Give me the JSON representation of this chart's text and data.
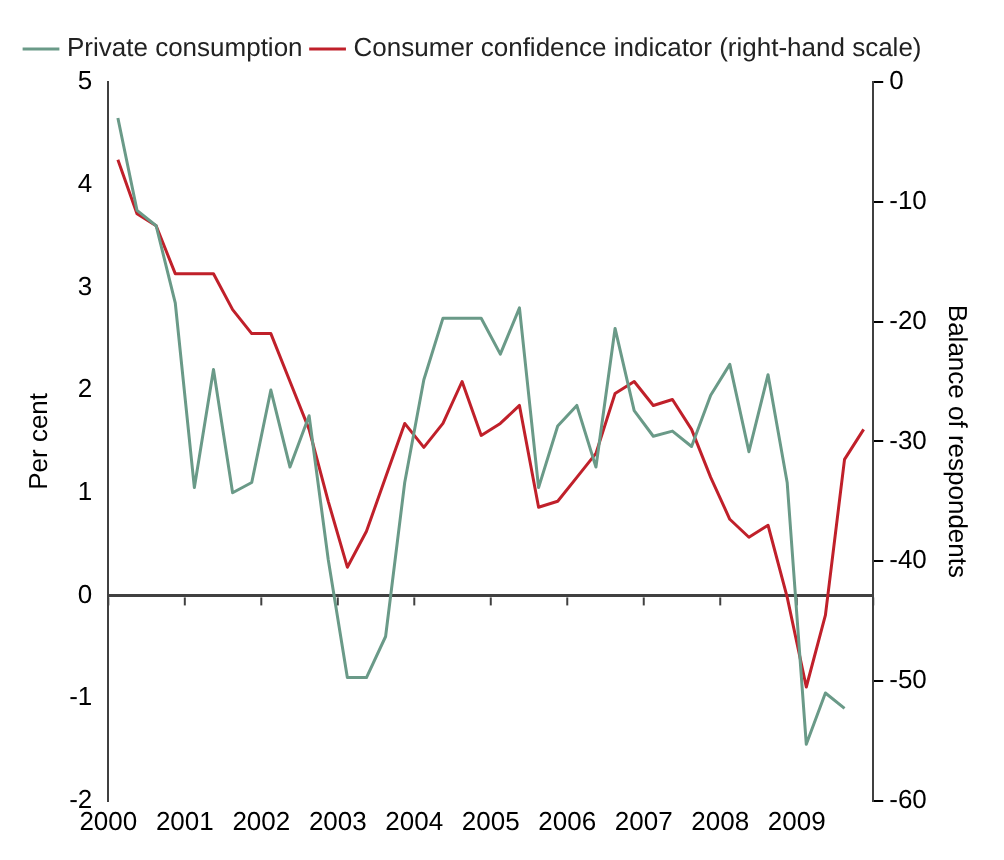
{
  "chart_data": {
    "type": "line",
    "ylabel": "Per cent",
    "y2label": "Balance of respondents",
    "xlim": [
      2000,
      2010
    ],
    "xticks": [
      2000,
      2001,
      2002,
      2003,
      2004,
      2005,
      2006,
      2007,
      2008,
      2009,
      {
        "value": 2010,
        "label": null
      }
    ],
    "ylim": [
      -2,
      5
    ],
    "yticks": [
      -2,
      -1,
      0,
      1,
      2,
      3,
      4,
      5
    ],
    "y2lim": [
      -60,
      0
    ],
    "y2ticks": [
      -60,
      -50,
      -40,
      -30,
      -20,
      -10,
      0
    ],
    "grid": false,
    "legend": "top left",
    "marker": "none",
    "line_style": "solid",
    "ref_lines": [
      {
        "axis": "y",
        "value": 0,
        "color": "#404040"
      }
    ],
    "series": [
      {
        "name": "Private consumption",
        "color": "#6a9a88",
        "x": [
          2000.125,
          2000.375,
          2000.625,
          2000.875,
          2001.125,
          2001.375,
          2001.625,
          2001.875,
          2002.125,
          2002.375,
          2002.625,
          2002.875,
          2003.125,
          2003.375,
          2003.625,
          2003.875,
          2004.125,
          2004.375,
          2004.625,
          2004.875,
          2005.125,
          2005.375,
          2005.625,
          2005.875,
          2006.125,
          2006.375,
          2006.625,
          2006.875,
          2007.125,
          2007.375,
          2007.625,
          2007.875,
          2008.125,
          2008.375,
          2008.625,
          2008.875,
          2009.125,
          2009.375,
          2009.625
        ],
        "values": [
          4.65,
          3.75,
          3.6,
          2.85,
          1.05,
          2.2,
          1.0,
          1.1,
          2.0,
          1.25,
          1.75,
          0.35,
          -0.8,
          -0.8,
          -0.4,
          1.1,
          2.1,
          2.7,
          2.7,
          2.7,
          2.35,
          2.8,
          1.05,
          1.65,
          1.85,
          1.25,
          2.6,
          1.8,
          1.55,
          1.6,
          1.45,
          1.95,
          2.25,
          1.4,
          2.15,
          1.1,
          -1.45,
          -0.95,
          -1.1
        ]
      },
      {
        "name": "Consumer confidence indicator (right-hand scale)",
        "color": "#c0202a",
        "axis": "y2",
        "x": [
          2000.125,
          2000.375,
          2000.625,
          2000.875,
          2001.125,
          2001.375,
          2001.625,
          2001.875,
          2002.125,
          2002.375,
          2002.625,
          2002.875,
          2003.125,
          2003.375,
          2003.625,
          2003.875,
          2004.125,
          2004.375,
          2004.625,
          2004.875,
          2005.125,
          2005.375,
          2005.625,
          2005.875,
          2006.125,
          2006.375,
          2006.625,
          2006.875,
          2007.125,
          2007.375,
          2007.625,
          2007.875,
          2008.125,
          2008.375,
          2008.625,
          2008.875,
          2009.125,
          2009.375,
          2009.625,
          2009.875
        ],
        "values": [
          -6.5,
          -11,
          -12,
          -16,
          -16,
          -16,
          -19,
          -21,
          -21,
          -25,
          -29,
          -35,
          -40.5,
          -37.5,
          -33,
          -28.5,
          -30.5,
          -28.5,
          -25,
          -29.5,
          -28.5,
          -27,
          -35.5,
          -35,
          -33,
          -31,
          -26,
          -25,
          -27,
          -26.5,
          -29,
          -33,
          -36.5,
          -38,
          -37,
          -43,
          -50.5,
          -44.5,
          -31.5,
          -29
        ]
      }
    ]
  }
}
